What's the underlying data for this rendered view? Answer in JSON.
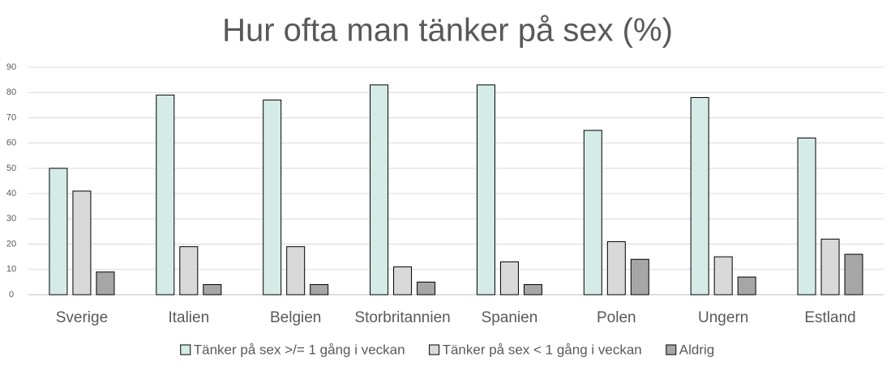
{
  "chart_data": {
    "type": "bar",
    "title": "Hur ofta man tänker på sex (%)",
    "categories": [
      "Sverige",
      "Italien",
      "Belgien",
      "Storbritannien",
      "Spanien",
      "Polen",
      "Ungern",
      "Estland"
    ],
    "series": [
      {
        "name": "Tänker på sex >/= 1 gång i veckan",
        "color": "#d5ebe6",
        "values": [
          50,
          79,
          77,
          83,
          83,
          65,
          78,
          62
        ]
      },
      {
        "name": "Tänker på sex < 1 gång i veckan",
        "color": "#d9d9d9",
        "values": [
          41,
          19,
          19,
          11,
          13,
          21,
          15,
          22
        ]
      },
      {
        "name": "Aldrig",
        "color": "#a6a6a6",
        "values": [
          9,
          4,
          4,
          5,
          4,
          14,
          7,
          16
        ]
      }
    ],
    "ylim": [
      0,
      90
    ],
    "yticks": [
      0,
      10,
      20,
      30,
      40,
      50,
      60,
      70,
      80,
      90
    ],
    "grid": true,
    "legend": "bottom"
  }
}
